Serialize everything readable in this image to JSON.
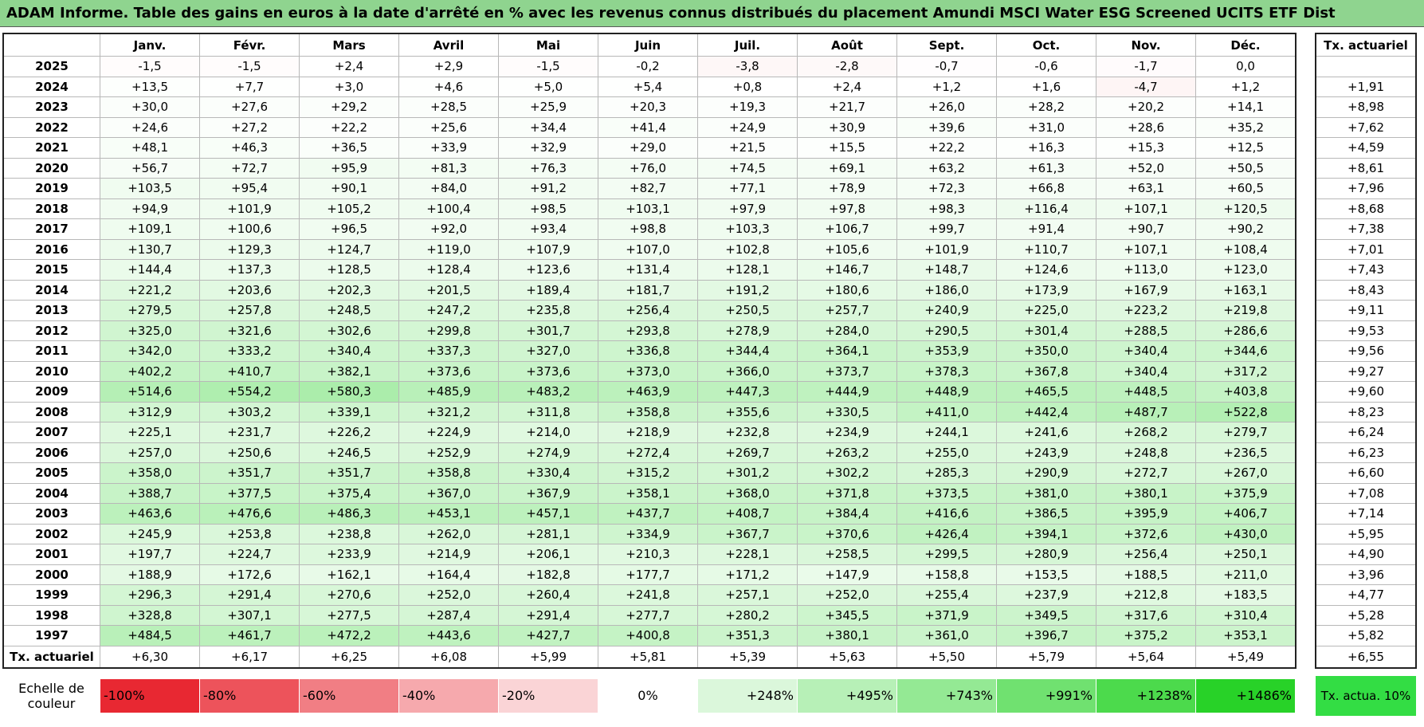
{
  "title": "ADAM Informe. Table des gains en euros à la date d'arrêté en % avec les revenus connus distribués du placement Amundi MSCI Water ESG Screened UCITS ETF Dist",
  "table": {
    "header": [
      "Janv.",
      "Févr.",
      "Mars",
      "Avril",
      "Mai",
      "Juin",
      "Juil.",
      "Août",
      "Sept.",
      "Oct.",
      "Nov.",
      "Déc.",
      "Tx. actuariel"
    ],
    "rows": [
      {
        "year": "2025",
        "cells": [
          "-1,5",
          "-1,5",
          "+2,4",
          "+2,9",
          "-1,5",
          "-0,2",
          "-3,8",
          "-2,8",
          "-0,7",
          "-0,6",
          "-1,7",
          "0,0"
        ],
        "rate": null
      },
      {
        "year": "2024",
        "cells": [
          "+13,5",
          "+7,7",
          "+3,0",
          "+4,6",
          "+5,0",
          "+5,4",
          "+0,8",
          "+2,4",
          "+1,2",
          "+1,6",
          "-4,7",
          "+1,2"
        ],
        "rate": "+1,91"
      },
      {
        "year": "2023",
        "cells": [
          "+30,0",
          "+27,6",
          "+29,2",
          "+28,5",
          "+25,9",
          "+20,3",
          "+19,3",
          "+21,7",
          "+26,0",
          "+28,2",
          "+20,2",
          "+14,1"
        ],
        "rate": "+8,98"
      },
      {
        "year": "2022",
        "cells": [
          "+24,6",
          "+27,2",
          "+22,2",
          "+25,6",
          "+34,4",
          "+41,4",
          "+24,9",
          "+30,9",
          "+39,6",
          "+31,0",
          "+28,6",
          "+35,2"
        ],
        "rate": "+7,62"
      },
      {
        "year": "2021",
        "cells": [
          "+48,1",
          "+46,3",
          "+36,5",
          "+33,9",
          "+32,9",
          "+29,0",
          "+21,5",
          "+15,5",
          "+22,2",
          "+16,3",
          "+15,3",
          "+12,5"
        ],
        "rate": "+4,59"
      },
      {
        "year": "2020",
        "cells": [
          "+56,7",
          "+72,7",
          "+95,9",
          "+81,3",
          "+76,3",
          "+76,0",
          "+74,5",
          "+69,1",
          "+63,2",
          "+61,3",
          "+52,0",
          "+50,5"
        ],
        "rate": "+8,61"
      },
      {
        "year": "2019",
        "cells": [
          "+103,5",
          "+95,4",
          "+90,1",
          "+84,0",
          "+91,2",
          "+82,7",
          "+77,1",
          "+78,9",
          "+72,3",
          "+66,8",
          "+63,1",
          "+60,5"
        ],
        "rate": "+7,96"
      },
      {
        "year": "2018",
        "cells": [
          "+94,9",
          "+101,9",
          "+105,2",
          "+100,4",
          "+98,5",
          "+103,1",
          "+97,9",
          "+97,8",
          "+98,3",
          "+116,4",
          "+107,1",
          "+120,5"
        ],
        "rate": "+8,68"
      },
      {
        "year": "2017",
        "cells": [
          "+109,1",
          "+100,6",
          "+96,5",
          "+92,0",
          "+93,4",
          "+98,8",
          "+103,3",
          "+106,7",
          "+99,7",
          "+91,4",
          "+90,7",
          "+90,2"
        ],
        "rate": "+7,38"
      },
      {
        "year": "2016",
        "cells": [
          "+130,7",
          "+129,3",
          "+124,7",
          "+119,0",
          "+107,9",
          "+107,0",
          "+102,8",
          "+105,6",
          "+101,9",
          "+110,7",
          "+107,1",
          "+108,4"
        ],
        "rate": "+7,01"
      },
      {
        "year": "2015",
        "cells": [
          "+144,4",
          "+137,3",
          "+128,5",
          "+128,4",
          "+123,6",
          "+131,4",
          "+128,1",
          "+146,7",
          "+148,7",
          "+124,6",
          "+113,0",
          "+123,0"
        ],
        "rate": "+7,43"
      },
      {
        "year": "2014",
        "cells": [
          "+221,2",
          "+203,6",
          "+202,3",
          "+201,5",
          "+189,4",
          "+181,7",
          "+191,2",
          "+180,6",
          "+186,0",
          "+173,9",
          "+167,9",
          "+163,1"
        ],
        "rate": "+8,43"
      },
      {
        "year": "2013",
        "cells": [
          "+279,5",
          "+257,8",
          "+248,5",
          "+247,2",
          "+235,8",
          "+256,4",
          "+250,5",
          "+257,7",
          "+240,9",
          "+225,0",
          "+223,2",
          "+219,8"
        ],
        "rate": "+9,11"
      },
      {
        "year": "2012",
        "cells": [
          "+325,0",
          "+321,6",
          "+302,6",
          "+299,8",
          "+301,7",
          "+293,8",
          "+278,9",
          "+284,0",
          "+290,5",
          "+301,4",
          "+288,5",
          "+286,6"
        ],
        "rate": "+9,53"
      },
      {
        "year": "2011",
        "cells": [
          "+342,0",
          "+333,2",
          "+340,4",
          "+337,3",
          "+327,0",
          "+336,8",
          "+344,4",
          "+364,1",
          "+353,9",
          "+350,0",
          "+340,4",
          "+344,6"
        ],
        "rate": "+9,56"
      },
      {
        "year": "2010",
        "cells": [
          "+402,2",
          "+410,7",
          "+382,1",
          "+373,6",
          "+373,6",
          "+373,0",
          "+366,0",
          "+373,7",
          "+378,3",
          "+367,8",
          "+340,4",
          "+317,2"
        ],
        "rate": "+9,27"
      },
      {
        "year": "2009",
        "cells": [
          "+514,6",
          "+554,2",
          "+580,3",
          "+485,9",
          "+483,2",
          "+463,9",
          "+447,3",
          "+444,9",
          "+448,9",
          "+465,5",
          "+448,5",
          "+403,8"
        ],
        "rate": "+9,60"
      },
      {
        "year": "2008",
        "cells": [
          "+312,9",
          "+303,2",
          "+339,1",
          "+321,2",
          "+311,8",
          "+358,8",
          "+355,6",
          "+330,5",
          "+411,0",
          "+442,4",
          "+487,7",
          "+522,8"
        ],
        "rate": "+8,23"
      },
      {
        "year": "2007",
        "cells": [
          "+225,1",
          "+231,7",
          "+226,2",
          "+224,9",
          "+214,0",
          "+218,9",
          "+232,8",
          "+234,9",
          "+244,1",
          "+241,6",
          "+268,2",
          "+279,7"
        ],
        "rate": "+6,24"
      },
      {
        "year": "2006",
        "cells": [
          "+257,0",
          "+250,6",
          "+246,5",
          "+252,9",
          "+274,9",
          "+272,4",
          "+269,7",
          "+263,2",
          "+255,0",
          "+243,9",
          "+248,8",
          "+236,5"
        ],
        "rate": "+6,23"
      },
      {
        "year": "2005",
        "cells": [
          "+358,0",
          "+351,7",
          "+351,7",
          "+358,8",
          "+330,4",
          "+315,2",
          "+301,2",
          "+302,2",
          "+285,3",
          "+290,9",
          "+272,7",
          "+267,0"
        ],
        "rate": "+6,60"
      },
      {
        "year": "2004",
        "cells": [
          "+388,7",
          "+377,5",
          "+375,4",
          "+367,0",
          "+367,9",
          "+358,1",
          "+368,0",
          "+371,8",
          "+373,5",
          "+381,0",
          "+380,1",
          "+375,9"
        ],
        "rate": "+7,08"
      },
      {
        "year": "2003",
        "cells": [
          "+463,6",
          "+476,6",
          "+486,3",
          "+453,1",
          "+457,1",
          "+437,7",
          "+408,7",
          "+384,4",
          "+416,6",
          "+386,5",
          "+395,9",
          "+406,7"
        ],
        "rate": "+7,14"
      },
      {
        "year": "2002",
        "cells": [
          "+245,9",
          "+253,8",
          "+238,8",
          "+262,0",
          "+281,1",
          "+334,9",
          "+367,7",
          "+370,6",
          "+426,4",
          "+394,1",
          "+372,6",
          "+430,0"
        ],
        "rate": "+5,95"
      },
      {
        "year": "2001",
        "cells": [
          "+197,7",
          "+224,7",
          "+233,9",
          "+214,9",
          "+206,1",
          "+210,3",
          "+228,1",
          "+258,5",
          "+299,5",
          "+280,9",
          "+256,4",
          "+250,1"
        ],
        "rate": "+4,90"
      },
      {
        "year": "2000",
        "cells": [
          "+188,9",
          "+172,6",
          "+162,1",
          "+164,4",
          "+182,8",
          "+177,7",
          "+171,2",
          "+147,9",
          "+158,8",
          "+153,5",
          "+188,5",
          "+211,0"
        ],
        "rate": "+3,96"
      },
      {
        "year": "1999",
        "cells": [
          "+296,3",
          "+291,4",
          "+270,6",
          "+252,0",
          "+260,4",
          "+241,8",
          "+257,1",
          "+252,0",
          "+255,4",
          "+237,9",
          "+212,8",
          "+183,5"
        ],
        "rate": "+4,77"
      },
      {
        "year": "1998",
        "cells": [
          "+328,8",
          "+307,1",
          "+277,5",
          "+287,4",
          "+291,4",
          "+277,7",
          "+280,2",
          "+345,5",
          "+371,9",
          "+349,5",
          "+317,6",
          "+310,4"
        ],
        "rate": "+5,28"
      },
      {
        "year": "1997",
        "cells": [
          "+484,5",
          "+461,7",
          "+472,2",
          "+443,6",
          "+427,7",
          "+400,8",
          "+351,3",
          "+380,1",
          "+361,0",
          "+396,7",
          "+375,2",
          "+353,1"
        ],
        "rate": "+5,82"
      }
    ],
    "footer": {
      "label": "Tx. actuariel",
      "cells": [
        "+6,30",
        "+6,17",
        "+6,25",
        "+6,08",
        "+5,99",
        "+5,81",
        "+5,39",
        "+5,63",
        "+5,50",
        "+5,79",
        "+5,64",
        "+5,49"
      ],
      "rate": "+6,55"
    }
  },
  "scale": {
    "label": "Echelle de couleur",
    "steps": [
      "-100%",
      "-80%",
      "-60%",
      "-40%",
      "-20%",
      "0%",
      "+248%",
      "+495%",
      "+743%",
      "+991%",
      "+1238%",
      "+1486%"
    ],
    "target": "Tx. actua. 10%"
  }
}
